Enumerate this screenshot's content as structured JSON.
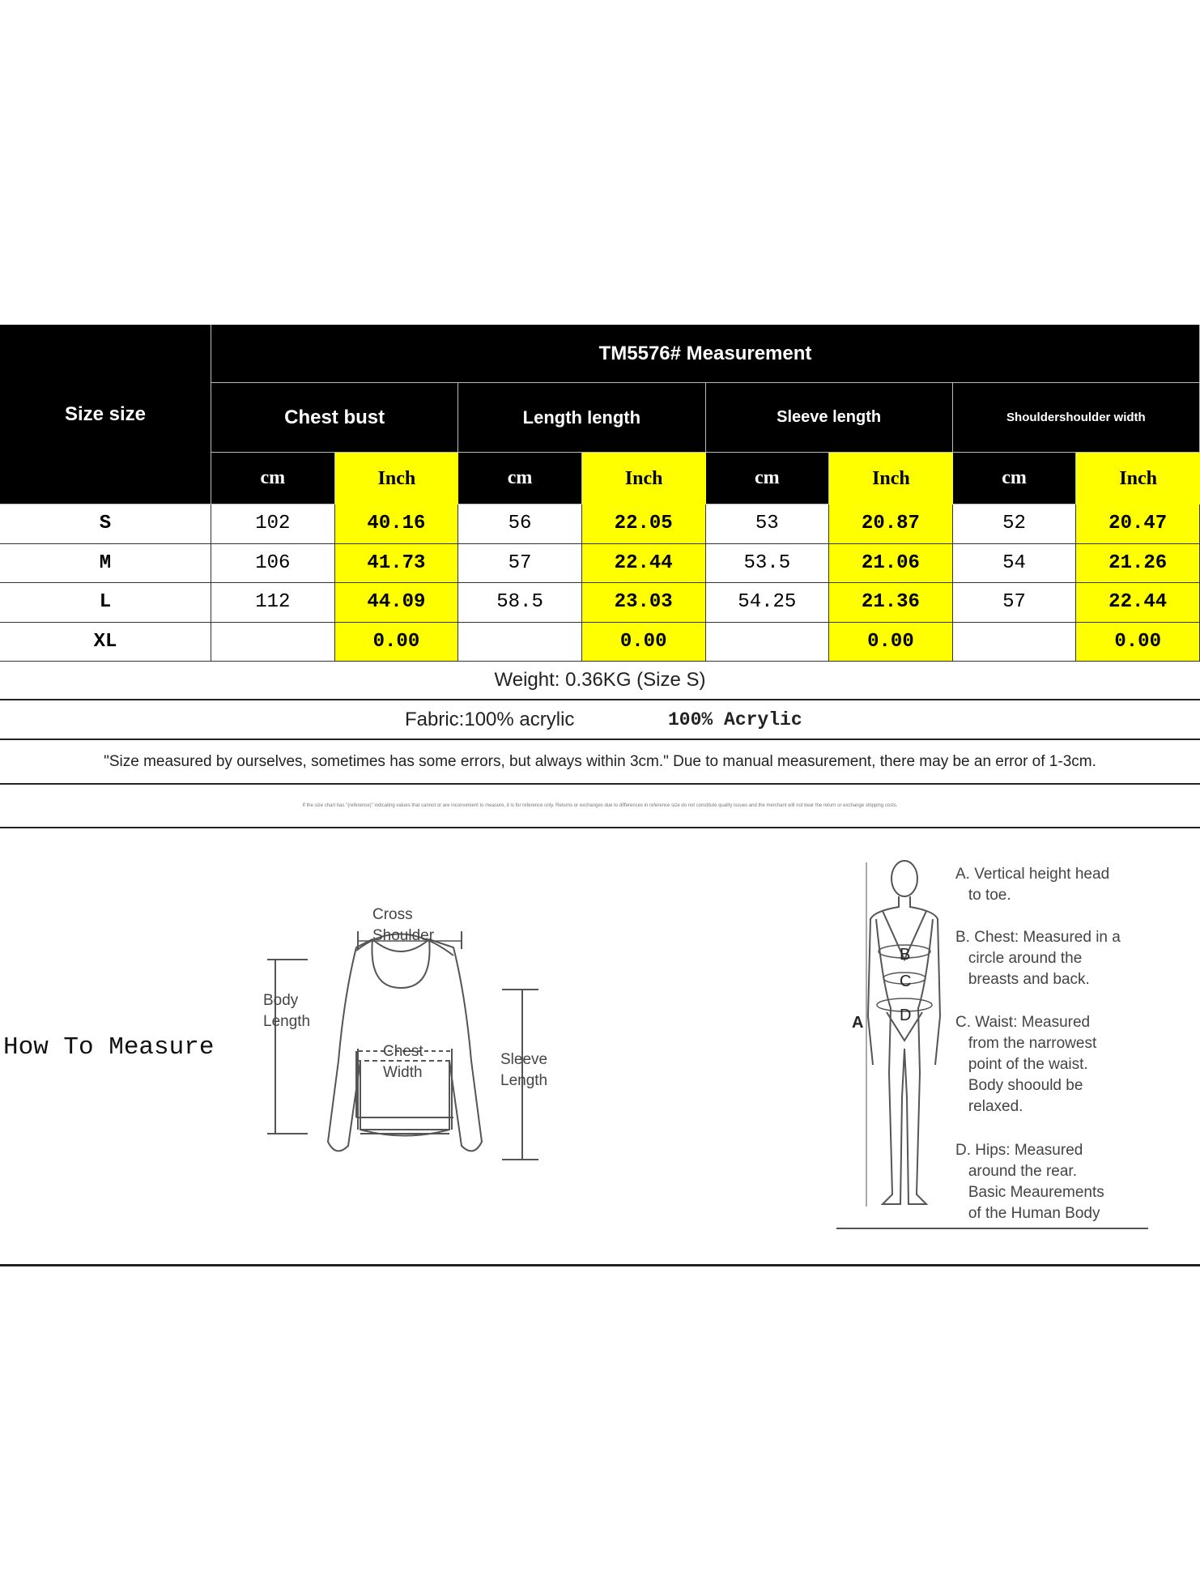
{
  "table": {
    "title": "TM5576# Measurement",
    "size_header": "Size size",
    "groups": [
      "Chest bust",
      "Length length",
      "Sleeve length",
      "Shouldershoulder width"
    ],
    "units": [
      "cm",
      "Inch"
    ],
    "rows": [
      {
        "size": "S",
        "values": [
          "102",
          "40.16",
          "56",
          "22.05",
          "53",
          "20.87",
          "52",
          "20.47"
        ]
      },
      {
        "size": "M",
        "values": [
          "106",
          "41.73",
          "57",
          "22.44",
          "53.5",
          "21.06",
          "54",
          "21.26"
        ]
      },
      {
        "size": "L",
        "values": [
          "112",
          "44.09",
          "58.5",
          "23.03",
          "54.25",
          "21.36",
          "57",
          "22.44"
        ]
      },
      {
        "size": "XL",
        "values": [
          "",
          "0.00",
          "",
          "0.00",
          "",
          "0.00",
          "",
          "0.00"
        ]
      }
    ]
  },
  "weight": "Weight: 0.36KG (Size S)",
  "fabric": "Fabric:100% acrylic",
  "fabric_alt": "100% Acrylic",
  "note": "\"Size measured by ourselves, sometimes has some errors, but always within 3cm.\" Due to manual measurement, there may be an error of 1-3cm.",
  "disclaimer": "If the size chart has \"(reference)\" indicating values that cannot or are inconvenient to measure, it is for reference only. Returns or exchanges due to differences in reference size do not constitute quality issues and the merchant will not bear the return or exchange shipping costs.",
  "measure": {
    "title": "How To Measure",
    "sweater_labels": {
      "cross": "Cross\nShoulder",
      "body": "Body\nLength",
      "chest": "Chest\nWidth",
      "sleeve": "Sleeve\nLength"
    },
    "body_letters": [
      "A",
      "B",
      "C",
      "D"
    ],
    "body_notes": [
      "A. Vertical height head\n   to toe.",
      "B. Chest: Measured in a\n   circle around the\n   breasts and back.",
      "C. Waist: Measured\n   from the narrowest\n   point of the waist.\n   Body shoould be\n   relaxed.",
      "D. Hips: Measured\n   around the rear.\n   Basic Meaurements\n   of the Human Body"
    ]
  },
  "colors": {
    "header": "#000000",
    "inch": "#ffff00"
  }
}
